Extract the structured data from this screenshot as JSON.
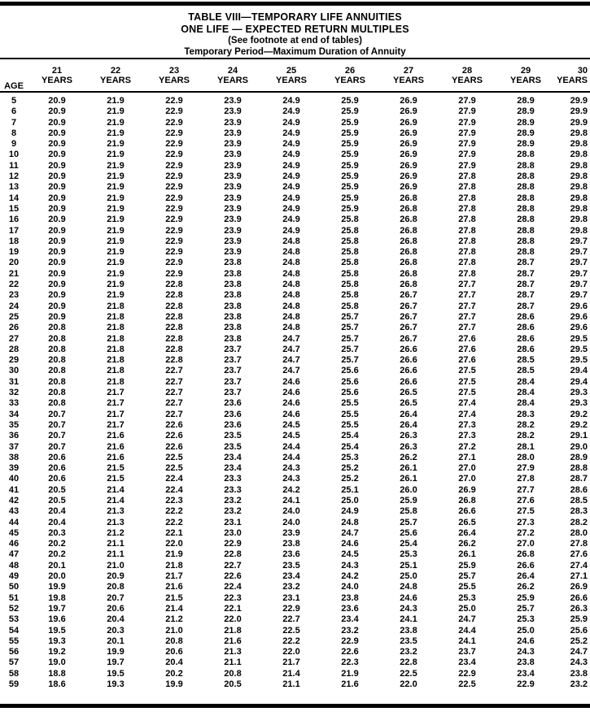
{
  "title": {
    "line1": "TABLE VIII—TEMPORARY LIFE ANNUITIES",
    "line2": "ONE LIFE — EXPECTED RETURN MULTIPLES",
    "line3": "(See footnote at end of tables)",
    "line4": "Temporary Period—Maximum Duration of Annuity"
  },
  "table": {
    "age_header": "AGE",
    "years_label": "YEARS",
    "year_columns": [
      "21",
      "22",
      "23",
      "24",
      "25",
      "26",
      "27",
      "28",
      "29",
      "30"
    ],
    "rows": [
      {
        "age": "5",
        "values": [
          "20.9",
          "21.9",
          "22.9",
          "23.9",
          "24.9",
          "25.9",
          "26.9",
          "27.9",
          "28.9",
          "29.9"
        ]
      },
      {
        "age": "6",
        "values": [
          "20.9",
          "21.9",
          "22.9",
          "23.9",
          "24.9",
          "25.9",
          "26.9",
          "27.9",
          "28.9",
          "29.9"
        ]
      },
      {
        "age": "7",
        "values": [
          "20.9",
          "21.9",
          "22.9",
          "23.9",
          "24.9",
          "25.9",
          "26.9",
          "27.9",
          "28.9",
          "29.9"
        ]
      },
      {
        "age": "8",
        "values": [
          "20.9",
          "21.9",
          "22.9",
          "23.9",
          "24.9",
          "25.9",
          "26.9",
          "27.9",
          "28.9",
          "29.8"
        ]
      },
      {
        "age": "9",
        "values": [
          "20.9",
          "21.9",
          "22.9",
          "23.9",
          "24.9",
          "25.9",
          "26.9",
          "27.9",
          "28.9",
          "29.8"
        ]
      },
      {
        "age": "10",
        "values": [
          "20.9",
          "21.9",
          "22.9",
          "23.9",
          "24.9",
          "25.9",
          "26.9",
          "27.9",
          "28.8",
          "29.8"
        ]
      },
      {
        "age": "11",
        "values": [
          "20.9",
          "21.9",
          "22.9",
          "23.9",
          "24.9",
          "25.9",
          "26.9",
          "27.9",
          "28.8",
          "29.8"
        ]
      },
      {
        "age": "12",
        "values": [
          "20.9",
          "21.9",
          "22.9",
          "23.9",
          "24.9",
          "25.9",
          "26.9",
          "27.8",
          "28.8",
          "29.8"
        ]
      },
      {
        "age": "13",
        "values": [
          "20.9",
          "21.9",
          "22.9",
          "23.9",
          "24.9",
          "25.9",
          "26.9",
          "27.8",
          "28.8",
          "29.8"
        ]
      },
      {
        "age": "14",
        "values": [
          "20.9",
          "21.9",
          "22.9",
          "23.9",
          "24.9",
          "25.9",
          "26.8",
          "27.8",
          "28.8",
          "29.8"
        ]
      },
      {
        "age": "15",
        "values": [
          "20.9",
          "21.9",
          "22.9",
          "23.9",
          "24.9",
          "25.9",
          "26.8",
          "27.8",
          "28.8",
          "29.8"
        ]
      },
      {
        "age": "16",
        "values": [
          "20.9",
          "21.9",
          "22.9",
          "23.9",
          "24.9",
          "25.8",
          "26.8",
          "27.8",
          "28.8",
          "29.8"
        ]
      },
      {
        "age": "17",
        "values": [
          "20.9",
          "21.9",
          "22.9",
          "23.9",
          "24.9",
          "25.8",
          "26.8",
          "27.8",
          "28.8",
          "29.8"
        ]
      },
      {
        "age": "18",
        "values": [
          "20.9",
          "21.9",
          "22.9",
          "23.9",
          "24.8",
          "25.8",
          "26.8",
          "27.8",
          "28.8",
          "29.7"
        ]
      },
      {
        "age": "19",
        "values": [
          "20.9",
          "21.9",
          "22.9",
          "23.9",
          "24.8",
          "25.8",
          "26.8",
          "27.8",
          "28.8",
          "29.7"
        ]
      },
      {
        "age": "20",
        "values": [
          "20.9",
          "21.9",
          "22.9",
          "23.8",
          "24.8",
          "25.8",
          "26.8",
          "27.8",
          "28.7",
          "29.7"
        ]
      },
      {
        "age": "21",
        "values": [
          "20.9",
          "21.9",
          "22.9",
          "23.8",
          "24.8",
          "25.8",
          "26.8",
          "27.8",
          "28.7",
          "29.7"
        ]
      },
      {
        "age": "22",
        "values": [
          "20.9",
          "21.9",
          "22.8",
          "23.8",
          "24.8",
          "25.8",
          "26.8",
          "27.7",
          "28.7",
          "29.7"
        ]
      },
      {
        "age": "23",
        "values": [
          "20.9",
          "21.9",
          "22.8",
          "23.8",
          "24.8",
          "25.8",
          "26.7",
          "27.7",
          "28.7",
          "29.7"
        ]
      },
      {
        "age": "24",
        "values": [
          "20.9",
          "21.8",
          "22.8",
          "23.8",
          "24.8",
          "25.8",
          "26.7",
          "27.7",
          "28.7",
          "29.6"
        ]
      },
      {
        "age": "25",
        "values": [
          "20.9",
          "21.8",
          "22.8",
          "23.8",
          "24.8",
          "25.7",
          "26.7",
          "27.7",
          "28.6",
          "29.6"
        ]
      },
      {
        "age": "26",
        "values": [
          "20.8",
          "21.8",
          "22.8",
          "23.8",
          "24.8",
          "25.7",
          "26.7",
          "27.7",
          "28.6",
          "29.6"
        ]
      },
      {
        "age": "27",
        "values": [
          "20.8",
          "21.8",
          "22.8",
          "23.8",
          "24.7",
          "25.7",
          "26.7",
          "27.6",
          "28.6",
          "29.5"
        ]
      },
      {
        "age": "28",
        "values": [
          "20.8",
          "21.8",
          "22.8",
          "23.7",
          "24.7",
          "25.7",
          "26.6",
          "27.6",
          "28.6",
          "29.5"
        ]
      },
      {
        "age": "29",
        "values": [
          "20.8",
          "21.8",
          "22.8",
          "23.7",
          "24.7",
          "25.7",
          "26.6",
          "27.6",
          "28.5",
          "29.5"
        ]
      },
      {
        "age": "30",
        "values": [
          "20.8",
          "21.8",
          "22.7",
          "23.7",
          "24.7",
          "25.6",
          "26.6",
          "27.5",
          "28.5",
          "29.4"
        ]
      },
      {
        "age": "31",
        "values": [
          "20.8",
          "21.8",
          "22.7",
          "23.7",
          "24.6",
          "25.6",
          "26.6",
          "27.5",
          "28.4",
          "29.4"
        ]
      },
      {
        "age": "32",
        "values": [
          "20.8",
          "21.7",
          "22.7",
          "23.7",
          "24.6",
          "25.6",
          "26.5",
          "27.5",
          "28.4",
          "29.3"
        ]
      },
      {
        "age": "33",
        "values": [
          "20.8",
          "21.7",
          "22.7",
          "23.6",
          "24.6",
          "25.5",
          "26.5",
          "27.4",
          "28.4",
          "29.3"
        ]
      },
      {
        "age": "34",
        "values": [
          "20.7",
          "21.7",
          "22.7",
          "23.6",
          "24.6",
          "25.5",
          "26.4",
          "27.4",
          "28.3",
          "29.2"
        ]
      },
      {
        "age": "35",
        "values": [
          "20.7",
          "21.7",
          "22.6",
          "23.6",
          "24.5",
          "25.5",
          "26.4",
          "27.3",
          "28.2",
          "29.2"
        ]
      },
      {
        "age": "36",
        "values": [
          "20.7",
          "21.6",
          "22.6",
          "23.5",
          "24.5",
          "25.4",
          "26.3",
          "27.3",
          "28.2",
          "29.1"
        ]
      },
      {
        "age": "37",
        "values": [
          "20.7",
          "21.6",
          "22.6",
          "23.5",
          "24.4",
          "25.4",
          "26.3",
          "27.2",
          "28.1",
          "29.0"
        ]
      },
      {
        "age": "38",
        "values": [
          "20.6",
          "21.6",
          "22.5",
          "23.4",
          "24.4",
          "25.3",
          "26.2",
          "27.1",
          "28.0",
          "28.9"
        ]
      },
      {
        "age": "39",
        "values": [
          "20.6",
          "21.5",
          "22.5",
          "23.4",
          "24.3",
          "25.2",
          "26.1",
          "27.0",
          "27.9",
          "28.8"
        ]
      },
      {
        "age": "40",
        "values": [
          "20.6",
          "21.5",
          "22.4",
          "23.3",
          "24.3",
          "25.2",
          "26.1",
          "27.0",
          "27.8",
          "28.7"
        ]
      },
      {
        "age": "41",
        "values": [
          "20.5",
          "21.4",
          "22.4",
          "23.3",
          "24.2",
          "25.1",
          "26.0",
          "26.9",
          "27.7",
          "28.6"
        ]
      },
      {
        "age": "42",
        "values": [
          "20.5",
          "21.4",
          "22.3",
          "23.2",
          "24.1",
          "25.0",
          "25.9",
          "26.8",
          "27.6",
          "28.5"
        ]
      },
      {
        "age": "43",
        "values": [
          "20.4",
          "21.3",
          "22.2",
          "23.2",
          "24.0",
          "24.9",
          "25.8",
          "26.6",
          "27.5",
          "28.3"
        ]
      },
      {
        "age": "44",
        "values": [
          "20.4",
          "21.3",
          "22.2",
          "23.1",
          "24.0",
          "24.8",
          "25.7",
          "26.5",
          "27.3",
          "28.2"
        ]
      },
      {
        "age": "45",
        "values": [
          "20.3",
          "21.2",
          "22.1",
          "23.0",
          "23.9",
          "24.7",
          "25.6",
          "26.4",
          "27.2",
          "28.0"
        ]
      },
      {
        "age": "46",
        "values": [
          "20.2",
          "21.1",
          "22.0",
          "22.9",
          "23.8",
          "24.6",
          "25.4",
          "26.2",
          "27.0",
          "27.8"
        ]
      },
      {
        "age": "47",
        "values": [
          "20.2",
          "21.1",
          "21.9",
          "22.8",
          "23.6",
          "24.5",
          "25.3",
          "26.1",
          "26.8",
          "27.6"
        ]
      },
      {
        "age": "48",
        "values": [
          "20.1",
          "21.0",
          "21.8",
          "22.7",
          "23.5",
          "24.3",
          "25.1",
          "25.9",
          "26.6",
          "27.4"
        ]
      },
      {
        "age": "49",
        "values": [
          "20.0",
          "20.9",
          "21.7",
          "22.6",
          "23.4",
          "24.2",
          "25.0",
          "25.7",
          "26.4",
          "27.1"
        ]
      },
      {
        "age": "50",
        "values": [
          "19.9",
          "20.8",
          "21.6",
          "22.4",
          "23.2",
          "24.0",
          "24.8",
          "25.5",
          "26.2",
          "26.9"
        ]
      },
      {
        "age": "51",
        "values": [
          "19.8",
          "20.7",
          "21.5",
          "22.3",
          "23.1",
          "23.8",
          "24.6",
          "25.3",
          "25.9",
          "26.6"
        ]
      },
      {
        "age": "52",
        "values": [
          "19.7",
          "20.6",
          "21.4",
          "22.1",
          "22.9",
          "23.6",
          "24.3",
          "25.0",
          "25.7",
          "26.3"
        ]
      },
      {
        "age": "53",
        "values": [
          "19.6",
          "20.4",
          "21.2",
          "22.0",
          "22.7",
          "23.4",
          "24.1",
          "24.7",
          "25.3",
          "25.9"
        ]
      },
      {
        "age": "54",
        "values": [
          "19.5",
          "20.3",
          "21.0",
          "21.8",
          "22.5",
          "23.2",
          "23.8",
          "24.4",
          "25.0",
          "25.6"
        ]
      },
      {
        "age": "55",
        "values": [
          "19.3",
          "20.1",
          "20.8",
          "21.6",
          "22.2",
          "22.9",
          "23.5",
          "24.1",
          "24.6",
          "25.2"
        ]
      },
      {
        "age": "56",
        "values": [
          "19.2",
          "19.9",
          "20.6",
          "21.3",
          "22.0",
          "22.6",
          "23.2",
          "23.7",
          "24.3",
          "24.7"
        ]
      },
      {
        "age": "57",
        "values": [
          "19.0",
          "19.7",
          "20.4",
          "21.1",
          "21.7",
          "22.3",
          "22.8",
          "23.4",
          "23.8",
          "24.3"
        ]
      },
      {
        "age": "58",
        "values": [
          "18.8",
          "19.5",
          "20.2",
          "20.8",
          "21.4",
          "21.9",
          "22.5",
          "22.9",
          "23.4",
          "23.8"
        ]
      },
      {
        "age": "59",
        "values": [
          "18.6",
          "19.3",
          "19.9",
          "20.5",
          "21.1",
          "21.6",
          "22.0",
          "22.5",
          "22.9",
          "23.2"
        ]
      }
    ]
  }
}
